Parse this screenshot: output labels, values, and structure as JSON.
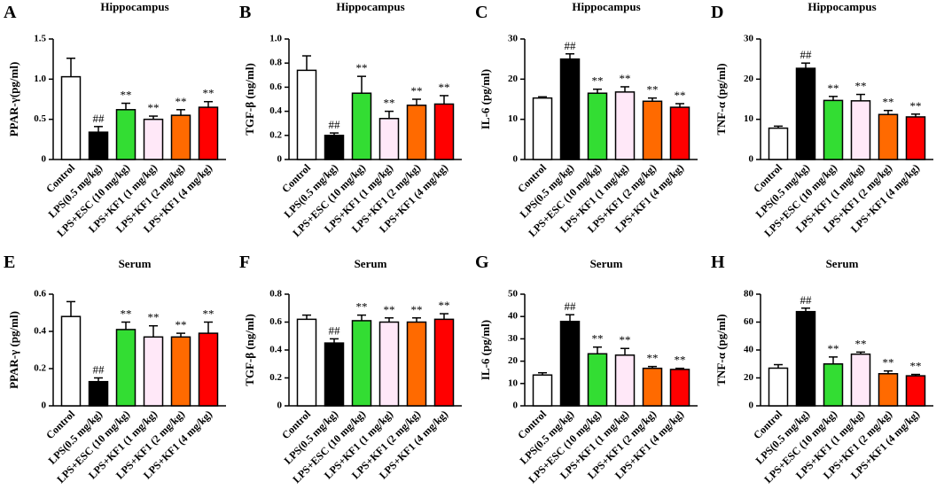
{
  "chart_data": [
    {
      "type": "bar",
      "panel": "A",
      "title": "Hippocampus",
      "ylabel": "PPAR-γ(pg/ml)",
      "categories": [
        "Control",
        "LPS(0.5 mg/kg)",
        "LPS+ESC (10 mg/kg)",
        "LPS+KF1 (1 mg/kg)",
        "LPS+KF1 (2 mg/kg)",
        "LPS+KF1 (4 mg/kg)"
      ],
      "values": [
        1.03,
        0.34,
        0.62,
        0.5,
        0.55,
        0.65
      ],
      "errors": [
        0.23,
        0.07,
        0.08,
        0.04,
        0.07,
        0.07
      ],
      "annotations": [
        null,
        "##",
        "**",
        "**",
        "**",
        "**"
      ],
      "colors": [
        "#ffffff",
        "#000000",
        "#33dd33",
        "#ffe8f8",
        "#ff6a00",
        "#ff0000"
      ],
      "ylim": [
        0,
        1.5
      ],
      "yticks": [
        0,
        0.5,
        {
          "value": 1,
          "label": "1.0"
        },
        1.5
      ]
    },
    {
      "type": "bar",
      "panel": "B",
      "title": "Hippocampus",
      "ylabel": "TGF-β (ng/ml)",
      "categories": [
        "Control",
        "LPS(0.5 mg/kg)",
        "LPS+ESC (10 mg/kg)",
        "LPS+KF1 (1 mg/kg)",
        "LPS+KF1 (2 mg/kg)",
        "LPS+KF1 (4 mg/kg)"
      ],
      "values": [
        0.74,
        0.2,
        0.55,
        0.34,
        0.45,
        0.46
      ],
      "errors": [
        0.12,
        0.02,
        0.14,
        0.06,
        0.05,
        0.07
      ],
      "annotations": [
        null,
        "##",
        "**",
        "**",
        "**",
        "**"
      ],
      "colors": [
        "#ffffff",
        "#000000",
        "#33dd33",
        "#ffe8f8",
        "#ff6a00",
        "#ff0000"
      ],
      "ylim": [
        0,
        1
      ],
      "yticks": [
        0,
        0.2,
        0.4,
        0.6,
        0.8,
        {
          "value": 1,
          "label": "1.0"
        }
      ]
    },
    {
      "type": "bar",
      "panel": "C",
      "title": "Hippocampus",
      "ylabel": "IL-6 (pg/ml)",
      "categories": [
        "Control",
        "LPS(0.5 mg/kg)",
        "LPS+ESC (10 mg/kg)",
        "LPS+KF1 (1 mg/kg)",
        "LPS+KF1 (2 mg/kg)",
        "LPS+KF1 (4 mg/kg)"
      ],
      "values": [
        15.3,
        25,
        16.5,
        16.8,
        14.5,
        13
      ],
      "errors": [
        0.3,
        1.3,
        1,
        1.3,
        0.8,
        0.9
      ],
      "annotations": [
        null,
        "##",
        "**",
        "**",
        "**",
        "**"
      ],
      "colors": [
        "#ffffff",
        "#000000",
        "#33dd33",
        "#ffe8f8",
        "#ff6a00",
        "#ff0000"
      ],
      "ylim": [
        0,
        30
      ],
      "yticks": [
        0,
        10,
        20,
        30
      ]
    },
    {
      "type": "bar",
      "panel": "D",
      "title": "Hippocampus",
      "ylabel": "TNF-α (pg/ml)",
      "categories": [
        "Control",
        "LPS(0.5 mg/kg)",
        "LPS+ESC (10 mg/kg)",
        "LPS+KF1 (1 mg/kg)",
        "LPS+KF1 (2 mg/kg)",
        "LPS+KF1 (4 mg/kg)"
      ],
      "values": [
        7.8,
        22.7,
        14.7,
        14.6,
        11.2,
        10.6
      ],
      "errors": [
        0.5,
        1.3,
        1,
        1.6,
        1,
        0.7
      ],
      "annotations": [
        null,
        "##",
        "**",
        "**",
        "**",
        "**"
      ],
      "colors": [
        "#ffffff",
        "#000000",
        "#33dd33",
        "#ffe8f8",
        "#ff6a00",
        "#ff0000"
      ],
      "ylim": [
        0,
        30
      ],
      "yticks": [
        0,
        10,
        20,
        30
      ]
    },
    {
      "type": "bar",
      "panel": "E",
      "title": "Serum",
      "ylabel": "PPAR-γ (pg/ml)",
      "categories": [
        "Control",
        "LPS(0.5 mg/kg)",
        "LPS+ESC (10 mg/kg)",
        "LPS+KF1 (1 mg/kg)",
        "LPS+KF1 (2 mg/kg)",
        "LPS+KF1 (4 mg/kg)"
      ],
      "values": [
        0.48,
        0.13,
        0.41,
        0.37,
        0.37,
        0.39
      ],
      "errors": [
        0.08,
        0.02,
        0.04,
        0.06,
        0.02,
        0.06
      ],
      "annotations": [
        null,
        "##",
        "**",
        "**",
        "**",
        "**"
      ],
      "colors": [
        "#ffffff",
        "#000000",
        "#33dd33",
        "#ffe8f8",
        "#ff6a00",
        "#ff0000"
      ],
      "ylim": [
        0,
        0.6
      ],
      "yticks": [
        0,
        0.2,
        0.4,
        0.6
      ]
    },
    {
      "type": "bar",
      "panel": "F",
      "title": "Serum",
      "ylabel": "TGF-β (ng/ml)",
      "categories": [
        "Control",
        "LPS(0.5 mg/kg)",
        "LPS+ESC (10 mg/kg)",
        "LPS+KF1 (1 mg/kg)",
        "LPS+KF1 (2 mg/kg)",
        "LPS+KF1 (4 mg/kg)"
      ],
      "values": [
        0.62,
        0.45,
        0.61,
        0.6,
        0.6,
        0.62
      ],
      "errors": [
        0.03,
        0.03,
        0.04,
        0.03,
        0.03,
        0.04
      ],
      "annotations": [
        null,
        "##",
        "**",
        "**",
        "**",
        "**"
      ],
      "colors": [
        "#ffffff",
        "#000000",
        "#33dd33",
        "#ffe8f8",
        "#ff6a00",
        "#ff0000"
      ],
      "ylim": [
        0,
        0.8
      ],
      "yticks": [
        0,
        0.2,
        0.4,
        0.6,
        0.8
      ]
    },
    {
      "type": "bar",
      "panel": "G",
      "title": "Serum",
      "ylabel": "IL-6 (pg/ml)",
      "categories": [
        "Control",
        "LPS(0.5 mg/kg)",
        "LPS+ESC (10 mg/kg)",
        "LPS+KF1 (1 mg/kg)",
        "LPS+KF1 (2 mg/kg)",
        "LPS+KF1 (4 mg/kg)"
      ],
      "values": [
        13.8,
        37.8,
        23.3,
        22.7,
        16.8,
        16.3
      ],
      "errors": [
        1,
        3,
        3,
        3,
        0.8,
        0.5
      ],
      "annotations": [
        null,
        "##",
        "**",
        "**",
        "**",
        "**"
      ],
      "colors": [
        "#ffffff",
        "#000000",
        "#33dd33",
        "#ffe8f8",
        "#ff6a00",
        "#ff0000"
      ],
      "ylim": [
        0,
        50
      ],
      "yticks": [
        0,
        10,
        20,
        30,
        40,
        50
      ]
    },
    {
      "type": "bar",
      "panel": "H",
      "title": "Serum",
      "ylabel": "TNF-α (pg/ml)",
      "categories": [
        "Control",
        "LPS(0.5 mg/kg)",
        "LPS+ESC (10 mg/kg)",
        "LPS+KF1 (1 mg/kg)",
        "LPS+KF1 (2 mg/kg)",
        "LPS+KF1 (4 mg/kg)"
      ],
      "values": [
        27,
        67.5,
        30,
        37,
        23,
        21.5
      ],
      "errors": [
        2.5,
        2.5,
        5,
        1.5,
        2,
        1
      ],
      "annotations": [
        null,
        "##",
        "**",
        "**",
        "**",
        "**"
      ],
      "colors": [
        "#ffffff",
        "#000000",
        "#33dd33",
        "#ffe8f8",
        "#ff6a00",
        "#ff0000"
      ],
      "ylim": [
        0,
        80
      ],
      "yticks": [
        0,
        20,
        40,
        60,
        80
      ]
    }
  ]
}
